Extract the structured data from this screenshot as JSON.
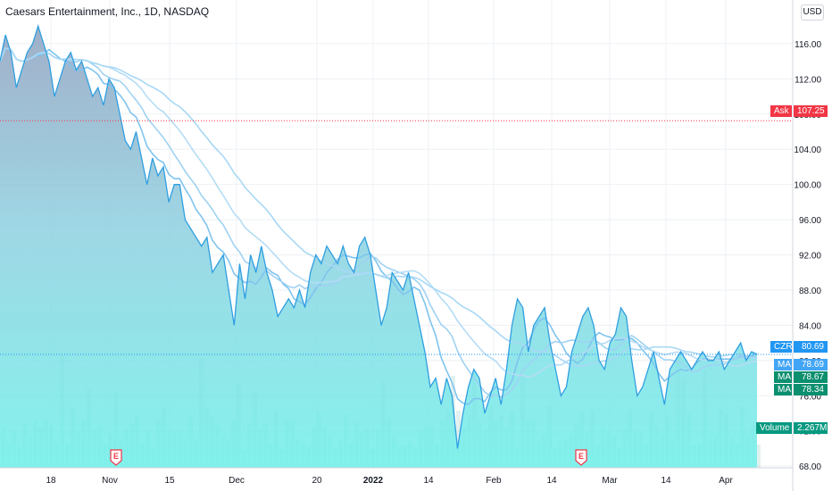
{
  "header": {
    "title": "Caesars Entertainment, Inc., 1D, NASDAQ",
    "currency": "USD"
  },
  "price_tags": {
    "ask": {
      "label": "Ask",
      "value": "107.25",
      "color": "#f23645"
    },
    "last": {
      "label": "CZR",
      "value": "80.69",
      "color": "#2196f3"
    },
    "ma1": {
      "label": "MA",
      "value": "78.69",
      "color": "#42a5f5"
    },
    "ma2": {
      "label": "MA",
      "value": "78.67",
      "color": "#0b8f6f"
    },
    "ma3": {
      "label": "MA",
      "value": "78.34",
      "color": "#0b8f6f"
    },
    "volume": {
      "label": "Volume",
      "value": "2.267M",
      "color": "#089981"
    }
  },
  "earnings_markers": [
    "E",
    "E"
  ],
  "chart_data": {
    "type": "area",
    "title": "Caesars Entertainment, Inc., 1D, NASDAQ",
    "ylim": [
      67,
      120
    ],
    "y_ticks": [
      "116.00",
      "112.00",
      "108.00",
      "104.00",
      "100.00",
      "96.00",
      "92.00",
      "88.00",
      "84.00",
      "80.00",
      "76.00",
      "72.00",
      "68.00"
    ],
    "x_tick_labels": [
      "18",
      "Nov",
      "15",
      "Dec",
      "20",
      "2022",
      "14",
      "Feb",
      "14",
      "Mar",
      "14",
      "Apr"
    ],
    "grid": true,
    "series": [
      {
        "name": "CZR",
        "values": [
          114,
          117,
          115,
          111,
          113,
          115,
          116,
          118,
          116,
          114,
          110,
          112,
          114,
          115,
          113,
          114,
          112,
          110,
          111,
          109,
          112,
          111,
          108,
          105,
          104,
          106,
          103,
          100,
          103,
          101,
          102,
          98,
          100,
          100,
          96,
          95,
          94,
          93,
          94,
          90,
          91,
          92,
          88,
          84,
          91,
          87,
          92,
          90,
          93,
          90,
          88,
          85,
          86,
          87,
          86,
          88,
          86,
          90,
          92,
          91,
          93,
          92,
          91,
          93,
          91,
          90,
          93,
          94,
          92,
          88,
          84,
          86,
          90,
          89,
          88,
          90,
          87,
          84,
          81,
          77,
          78,
          75,
          78,
          76,
          70,
          74,
          77,
          79,
          78,
          74,
          76,
          78,
          75,
          79,
          84,
          87,
          86,
          81,
          84,
          85,
          86,
          82,
          79,
          76,
          77,
          81,
          83,
          85,
          86,
          84,
          80,
          79,
          82,
          83,
          86,
          85,
          80,
          76,
          77,
          79,
          81,
          78,
          75,
          79,
          80,
          81,
          80,
          79,
          80,
          81,
          80,
          80,
          81,
          79,
          80,
          81,
          82,
          80,
          81,
          80.69
        ]
      },
      {
        "name": "MA",
        "values": []
      },
      {
        "name": "MA",
        "values": []
      },
      {
        "name": "MA",
        "values": []
      },
      {
        "name": "Volume",
        "values": []
      }
    ],
    "ask_line": 107.25,
    "last_price": 80.69
  }
}
